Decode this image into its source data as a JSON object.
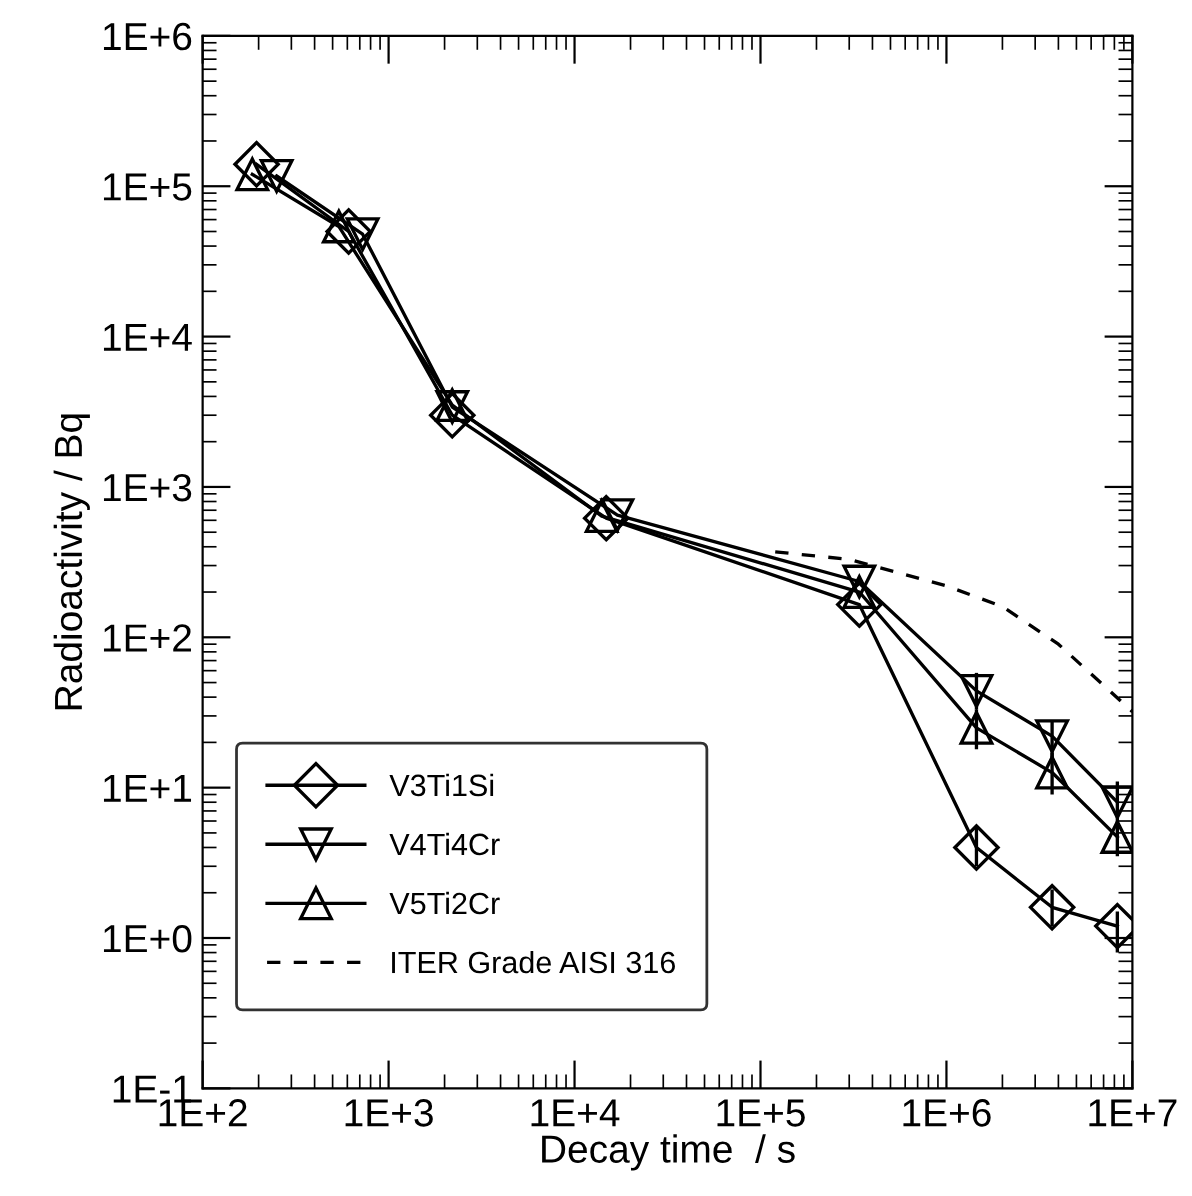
{
  "chart_data": {
    "type": "line",
    "xlabel": "Decay time  / s",
    "ylabel": "Radioactivity / Bq",
    "log": "xy",
    "xlim": [
      100,
      10000000
    ],
    "ylim": [
      0.1,
      1000000
    ],
    "xticks": [
      {
        "value": 100,
        "label": "1E+2"
      },
      {
        "value": 1000,
        "label": "1E+3"
      },
      {
        "value": 10000,
        "label": "1E+4"
      },
      {
        "value": 100000,
        "label": "1E+5"
      },
      {
        "value": 1000000,
        "label": "1E+6"
      },
      {
        "value": 10000000,
        "label": "1E+7"
      }
    ],
    "yticks": [
      {
        "value": 0.1,
        "label": "1E-1"
      },
      {
        "value": 1,
        "label": "1E+0"
      },
      {
        "value": 10,
        "label": "1E+1"
      },
      {
        "value": 100,
        "label": "1E+2"
      },
      {
        "value": 1000,
        "label": "1E+3"
      },
      {
        "value": 10000,
        "label": "1E+4"
      },
      {
        "value": 100000,
        "label": "1E+5"
      },
      {
        "value": 1000000,
        "label": "1E+6"
      }
    ],
    "grid": false,
    "legend": "bottom left",
    "series": [
      {
        "name": "V3Ti1Si",
        "color": "#000000",
        "marker": "diamond",
        "line_style": "solid",
        "x": [
          195,
          610,
          2200,
          14800,
          340000,
          1450000,
          3700000,
          8300000
        ],
        "values": [
          140000,
          50000,
          3000,
          620,
          165,
          4,
          1.6,
          1.2
        ],
        "errors": [
          null,
          null,
          null,
          null,
          null,
          [
            3,
            5.5
          ],
          [
            1.2,
            2.1
          ],
          [
            0.8,
            1.5
          ]
        ]
      },
      {
        "name": "V4Ti4Cr",
        "color": "#000000",
        "marker": "triangle_down",
        "line_style": "solid",
        "x": [
          250,
          725,
          2200,
          17000,
          340000,
          1450000,
          3700000,
          8300000
        ],
        "values": [
          117000,
          48000,
          3400,
          650,
          235,
          44,
          22,
          8
        ],
        "errors": [
          null,
          null,
          null,
          null,
          null,
          [
            33,
            58
          ],
          [
            16,
            28
          ],
          [
            6,
            11
          ]
        ]
      },
      {
        "name": "V5Ti2Cr",
        "color": "#000000",
        "marker": "triangle",
        "line_style": "solid",
        "x": [
          185,
          540,
          2200,
          14000,
          340000,
          1450000,
          3700000,
          8300000
        ],
        "values": [
          120000,
          54000,
          3500,
          640,
          200,
          25,
          12.6,
          4.7
        ],
        "errors": [
          null,
          null,
          null,
          null,
          null,
          [
            18,
            33
          ],
          [
            9,
            17
          ],
          [
            3.5,
            6
          ]
        ]
      },
      {
        "name": "ITER Grade AISI 316",
        "color": "#000000",
        "marker": "none",
        "line_style": "dashed",
        "x": [
          120000,
          300000,
          1000000,
          2000000,
          4000000,
          10000000
        ],
        "values": [
          370,
          330,
          220,
          160,
          90,
          32
        ]
      }
    ]
  }
}
